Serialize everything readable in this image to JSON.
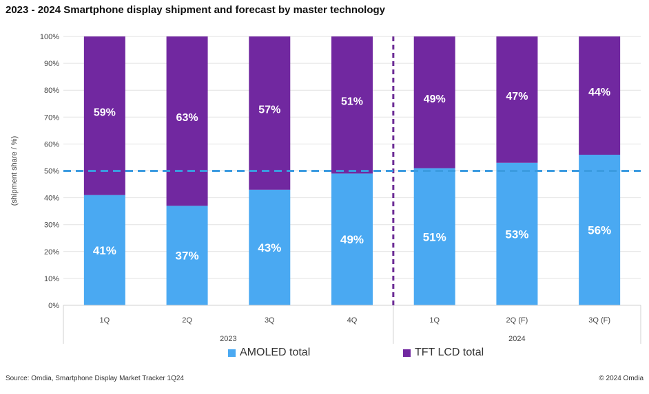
{
  "chart_data": {
    "type": "bar",
    "stacked": true,
    "title": "2023 - 2024 Smartphone display shipment and forecast by master technology",
    "xlabel": "",
    "ylabel": "(shipment share / %)",
    "ylim": [
      0,
      100
    ],
    "yticks": [
      "0%",
      "10%",
      "20%",
      "30%",
      "40%",
      "50%",
      "60%",
      "70%",
      "80%",
      "90%",
      "100%"
    ],
    "categories": [
      "1Q",
      "2Q",
      "3Q",
      "4Q",
      "1Q",
      "2Q (F)",
      "3Q (F)"
    ],
    "groups": [
      {
        "label": "2023",
        "count": 4
      },
      {
        "label": "2024",
        "count": 3
      }
    ],
    "series": [
      {
        "name": "AMOLED total",
        "color": "#4aa9f2",
        "values": [
          41,
          37,
          43,
          49,
          51,
          53,
          56
        ],
        "labels": [
          "41%",
          "37%",
          "43%",
          "49%",
          "51%",
          "53%",
          "56%"
        ]
      },
      {
        "name": "TFT LCD total",
        "color": "#7128a0",
        "values": [
          59,
          63,
          57,
          51,
          49,
          47,
          44
        ],
        "labels": [
          "59%",
          "63%",
          "57%",
          "51%",
          "49%",
          "47%",
          "44%"
        ]
      }
    ],
    "reference_line": {
      "y": 50,
      "color": "#3b9be0",
      "style": "dashed"
    },
    "divider": {
      "after_category_index": 3,
      "color": "#6b2a95",
      "style": "dashed"
    },
    "legend": {
      "position": "bottom-center"
    }
  },
  "footer": {
    "source": "Source: Omdia, Smartphone Display Market Tracker 1Q24",
    "copyright": "© 2024 Omdia"
  }
}
